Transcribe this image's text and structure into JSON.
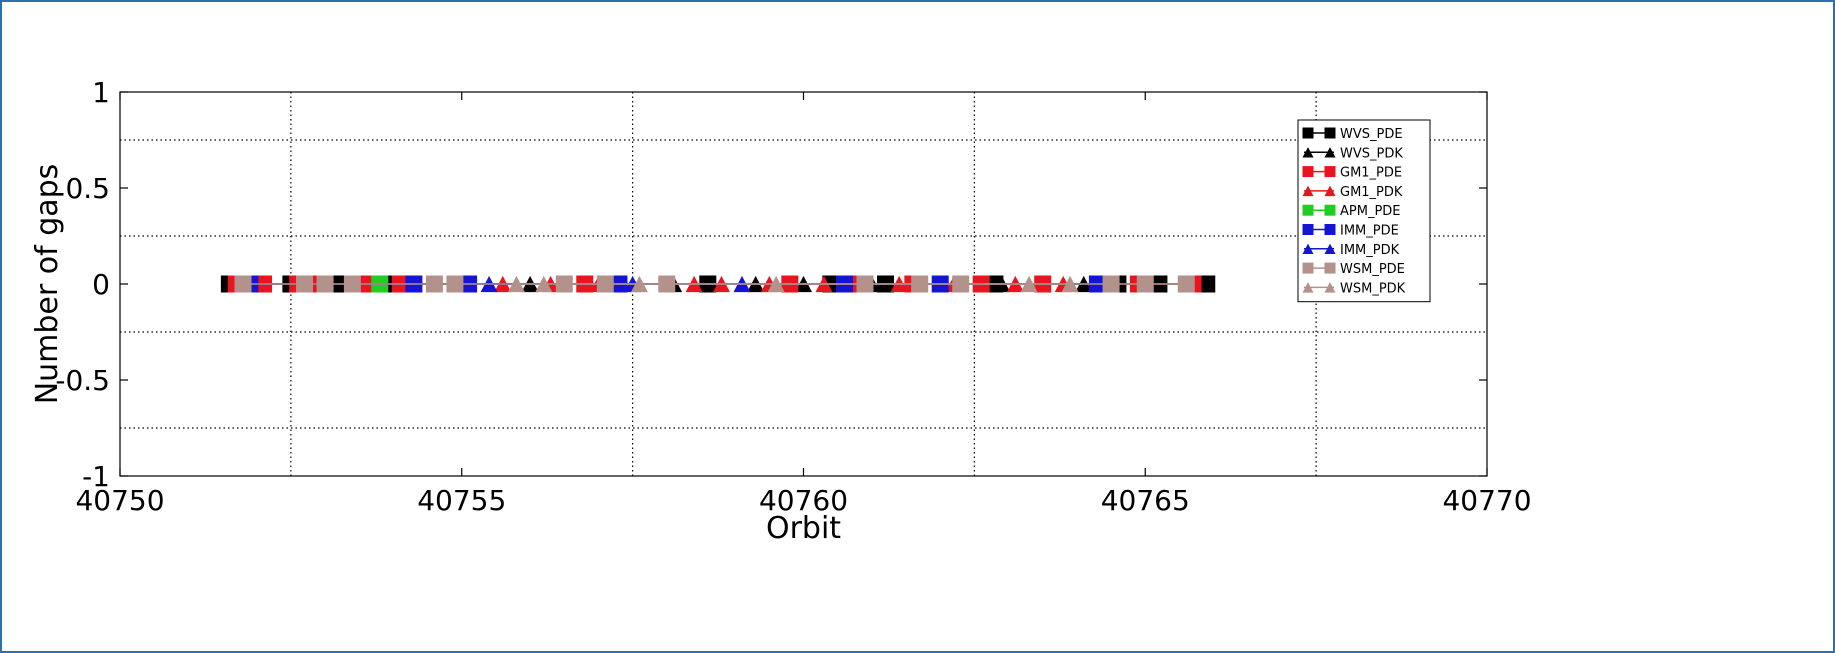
{
  "chart_data": {
    "type": "line",
    "title": "",
    "xlabel": "Orbit",
    "ylabel": "Number of gaps",
    "xlim": [
      40750,
      40770
    ],
    "ylim": [
      -1,
      1
    ],
    "x_ticks": [
      40750,
      40755,
      40760,
      40765,
      40770
    ],
    "y_ticks": [
      -1,
      -0.5,
      0,
      0.5,
      1
    ],
    "x_tick_labels": [
      "40750",
      "40755",
      "40760",
      "40765",
      "40770"
    ],
    "y_tick_labels": [
      "-1",
      "-0.5",
      "0",
      "0.5",
      "1"
    ],
    "x_minor_grid": [
      40752.5,
      40757.5,
      40762.5,
      40767.5
    ],
    "y_minor_grid": [
      -0.75,
      -0.25,
      0.25,
      0.75
    ],
    "grid": true,
    "legend_position": "top-right",
    "series": [
      {
        "name": "WVS_PDE",
        "color": "#000000",
        "marker": "square",
        "x": [
          40751.6,
          40751.9,
          40752.5,
          40753.2,
          40754.0,
          40758.6,
          40760.4,
          40761.2,
          40762.8,
          40764.6,
          40765.2,
          40765.9
        ],
        "values": [
          0,
          0,
          0,
          0,
          0,
          0,
          0,
          0,
          0,
          0,
          0,
          0
        ]
      },
      {
        "name": "WVS_PDK",
        "color": "#000000",
        "marker": "triangle",
        "x": [
          40756.0,
          40758.1,
          40759.3,
          40760.0,
          40761.0,
          40762.9,
          40764.1
        ],
        "values": [
          0,
          0,
          0,
          0,
          0,
          0,
          0
        ]
      },
      {
        "name": "GM1_PDE",
        "color": "#e8141e",
        "marker": "square",
        "x": [
          40751.7,
          40752.1,
          40752.6,
          40752.9,
          40753.6,
          40754.1,
          40756.8,
          40759.8,
          40760.8,
          40761.6,
          40762.6,
          40763.5,
          40764.9,
          40765.7
        ],
        "values": [
          0,
          0,
          0,
          0,
          0,
          0,
          0,
          0,
          0,
          0,
          0,
          0,
          0,
          0
        ]
      },
      {
        "name": "GM1_PDK",
        "color": "#e8141e",
        "marker": "triangle",
        "x": [
          40755.6,
          40756.3,
          40757.0,
          40758.4,
          40758.8,
          40759.5,
          40760.3,
          40761.4,
          40762.2,
          40763.1,
          40763.8
        ],
        "values": [
          0,
          0,
          0,
          0,
          0,
          0,
          0,
          0,
          0,
          0,
          0
        ]
      },
      {
        "name": "APM_PDE",
        "color": "#22cc22",
        "marker": "square",
        "x": [
          40753.8
        ],
        "values": [
          0
        ]
      },
      {
        "name": "IMM_PDE",
        "color": "#1414d2",
        "marker": "square",
        "x": [
          40751.9,
          40754.3,
          40755.1,
          40757.3,
          40760.6,
          40762.0,
          40764.3
        ],
        "values": [
          0,
          0,
          0,
          0,
          0,
          0,
          0
        ]
      },
      {
        "name": "IMM_PDK",
        "color": "#1414d2",
        "marker": "triangle",
        "x": [
          40755.4,
          40757.5,
          40759.1
        ],
        "values": [
          0,
          0,
          0
        ]
      },
      {
        "name": "WSM_PDE",
        "color": "#b3928c",
        "marker": "square",
        "x": [
          40751.8,
          40752.7,
          40753.0,
          40753.4,
          40754.6,
          40754.9,
          40756.5,
          40757.1,
          40758.0,
          40760.9,
          40761.7,
          40762.3,
          40764.5,
          40765.0,
          40765.6
        ],
        "values": [
          0,
          0,
          0,
          0,
          0,
          0,
          0,
          0,
          0,
          0,
          0,
          0,
          0,
          0,
          0
        ]
      },
      {
        "name": "WSM_PDK",
        "color": "#b3928c",
        "marker": "triangle",
        "x": [
          40755.8,
          40756.2,
          40757.6,
          40759.6,
          40763.3,
          40763.9
        ],
        "values": [
          0,
          0,
          0,
          0,
          0,
          0
        ]
      }
    ]
  }
}
